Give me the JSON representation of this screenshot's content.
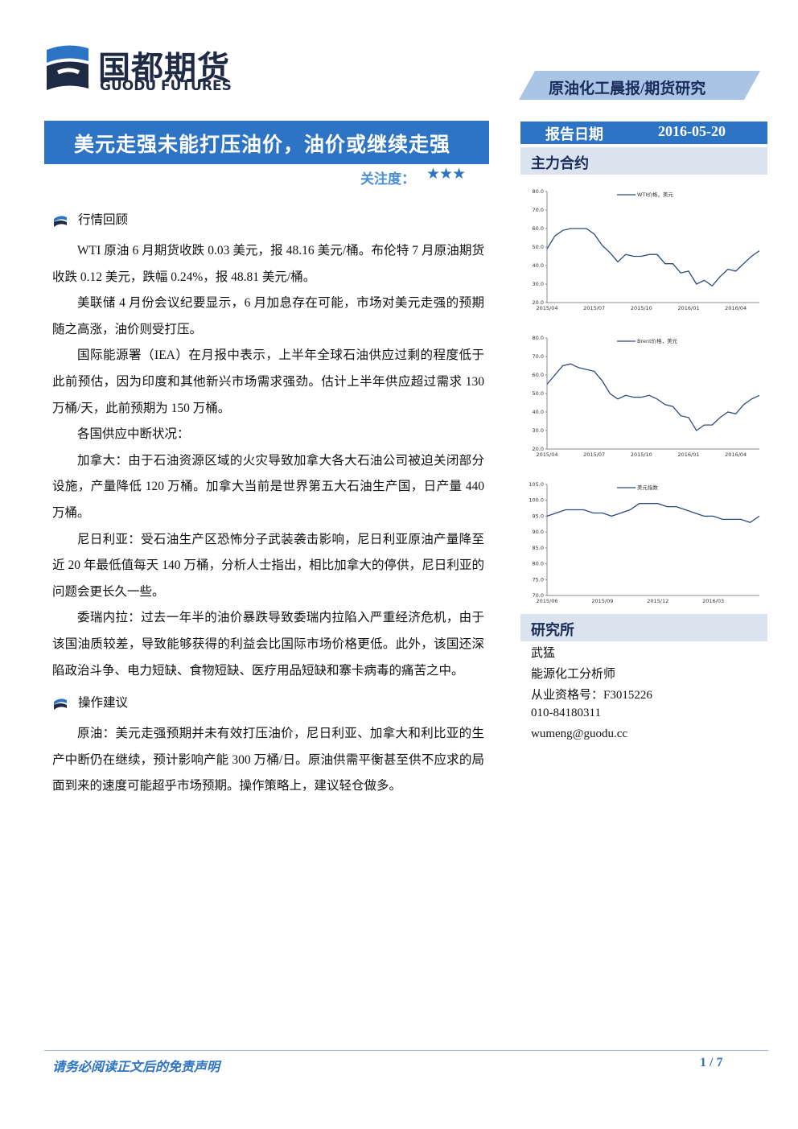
{
  "header": {
    "logo_cn": "国都期货",
    "logo_en": "GUODU FUTURES",
    "report_type": "原油化工晨报/期货研究"
  },
  "title": "美元走强未能打压油价，油价或继续走强",
  "attention": {
    "label": "关注度：",
    "stars": "★★★"
  },
  "sections": [
    {
      "heading": "行情回顾",
      "paragraphs": [
        "WTI 原油 6 月期货收跌 0.03 美元，报 48.16 美元/桶。布伦特 7 月原油期货收跌 0.12 美元，跌幅 0.24%，报 48.81 美元/桶。",
        "美联储 4 月份会议纪要显示，6 月加息存在可能，市场对美元走强的预期随之高涨，油价则受打压。",
        "国际能源署（IEA）在月报中表示，上半年全球石油供应过剩的程度低于此前预估，因为印度和其他新兴市场需求强劲。估计上半年供应超过需求 130 万桶/天，此前预期为 150 万桶。",
        "各国供应中断状况：",
        "加拿大：由于石油资源区域的火灾导致加拿大各大石油公司被迫关闭部分设施，产量降低 120 万桶。加拿大当前是世界第五大石油生产国，日产量 440 万桶。",
        "尼日利亚：受石油生产区恐怖分子武装袭击影响，尼日利亚原油产量降至近 20 年最低值每天 140 万桶，分析人士指出，相比加拿大的停供，尼日利亚的问题会更长久一些。",
        "委瑞内拉：过去一年半的油价暴跌导致委瑞内拉陷入严重经济危机，由于该国油质较差，导致能够获得的利益会比国际市场价格更低。此外，该国还深陷政治斗争、电力短缺、食物短缺、医疗用品短缺和寨卡病毒的痛苦之中。"
      ]
    },
    {
      "heading": "操作建议",
      "paragraphs": [
        "原油：美元走强预期并未有效打压油价，尼日利亚、加拿大和利比亚的生产中断仍在继续，预计影响产能 300 万桶/日。原油供需平衡甚至供不应求的局面到来的速度可能超乎市场预期。操作策略上，建议轻仓做多。"
      ]
    }
  ],
  "sidebar": {
    "date_label": "报告日期",
    "date": "2016-05-20",
    "contract_heading": "主力合约",
    "charts": [
      {
        "type": "line",
        "categories": [
          "2015/04",
          null,
          null,
          null,
          null,
          null,
          "2015/07",
          null,
          null,
          null,
          null,
          null,
          "2015/10",
          null,
          null,
          null,
          null,
          null,
          "2016/01",
          null,
          null,
          null,
          null,
          null,
          "2016/04",
          null,
          null,
          null
        ],
        "series": [
          {
            "name": "WTI价格，美元",
            "color": "#2e4a7a",
            "values": [
              49,
              56,
              59,
              60,
              60,
              60,
              57,
              51,
              47,
              42,
              46,
              45,
              45,
              46,
              46,
              41,
              41,
              36,
              37,
              30,
              32,
              29,
              34,
              38,
              37,
              41,
              45,
              48
            ]
          }
        ],
        "ylim": [
          20,
          80
        ],
        "yticks": [
          {
            "value": 20,
            "label": "20.0"
          },
          {
            "value": 30,
            "label": "30.0"
          },
          {
            "value": 40,
            "label": "40.0"
          },
          {
            "value": 50,
            "label": "50.0"
          },
          {
            "value": 60,
            "label": "60.0"
          },
          {
            "value": 70,
            "label": "70.0"
          },
          {
            "value": 80,
            "label": "80.0"
          }
        ]
      },
      {
        "type": "line",
        "categories": [
          "2015/04",
          null,
          null,
          null,
          null,
          null,
          "2015/07",
          null,
          null,
          null,
          null,
          null,
          "2015/10",
          null,
          null,
          null,
          null,
          null,
          "2016/01",
          null,
          null,
          null,
          null,
          null,
          "2016/04",
          null,
          null,
          null
        ],
        "series": [
          {
            "name": "Brent价格，美元",
            "color": "#2e4a7a",
            "values": [
              55,
              60,
              65,
              66,
              64,
              63,
              62,
              57,
              50,
              47,
              49,
              48,
              48,
              49,
              47,
              44,
              43,
              38,
              37,
              30,
              33,
              33,
              37,
              40,
              39,
              44,
              47,
              49
            ]
          }
        ],
        "ylim": [
          20,
          80
        ],
        "yticks": [
          {
            "value": 20,
            "label": "20.0"
          },
          {
            "value": 30,
            "label": "30.0"
          },
          {
            "value": 40,
            "label": "40.0"
          },
          {
            "value": 50,
            "label": "50.0"
          },
          {
            "value": 60,
            "label": "60.0"
          },
          {
            "value": 70,
            "label": "70.0"
          },
          {
            "value": 80,
            "label": "80.0"
          }
        ]
      },
      {
        "type": "line",
        "categories": [
          "2015/06",
          null,
          null,
          null,
          null,
          null,
          "2015/09",
          null,
          null,
          null,
          null,
          null,
          "2015/12",
          null,
          null,
          null,
          null,
          null,
          "2016/03",
          null,
          null,
          null,
          null,
          null
        ],
        "series": [
          {
            "name": "美元指数",
            "color": "#2e4a7a",
            "values": [
              95,
              96,
              97,
              97,
              97,
              96,
              96,
              95,
              96,
              97,
              99,
              99,
              99,
              98,
              98,
              97,
              96,
              95,
              95,
              94,
              94,
              94,
              93,
              95
            ]
          }
        ],
        "ylim": [
          70,
          105
        ],
        "yticks": [
          {
            "value": 70,
            "label": "70.0"
          },
          {
            "value": 75,
            "label": "75.0"
          },
          {
            "value": 80,
            "label": "80.0"
          },
          {
            "value": 85,
            "label": "85.0"
          },
          {
            "value": 90,
            "label": "90.0"
          },
          {
            "value": 95,
            "label": "95.0"
          },
          {
            "value": 100,
            "label": "100.0"
          },
          {
            "value": 105,
            "label": "105.0"
          }
        ]
      }
    ],
    "research_heading": "研究所",
    "contacts": [
      "武猛",
      "能源化工分析师",
      "从业资格号：F3015226",
      "010-84180311",
      "wumeng@guodu.cc"
    ]
  },
  "footer": {
    "disclaimer": "请务必阅读正文后的免责声明",
    "page": "1 / 7"
  }
}
